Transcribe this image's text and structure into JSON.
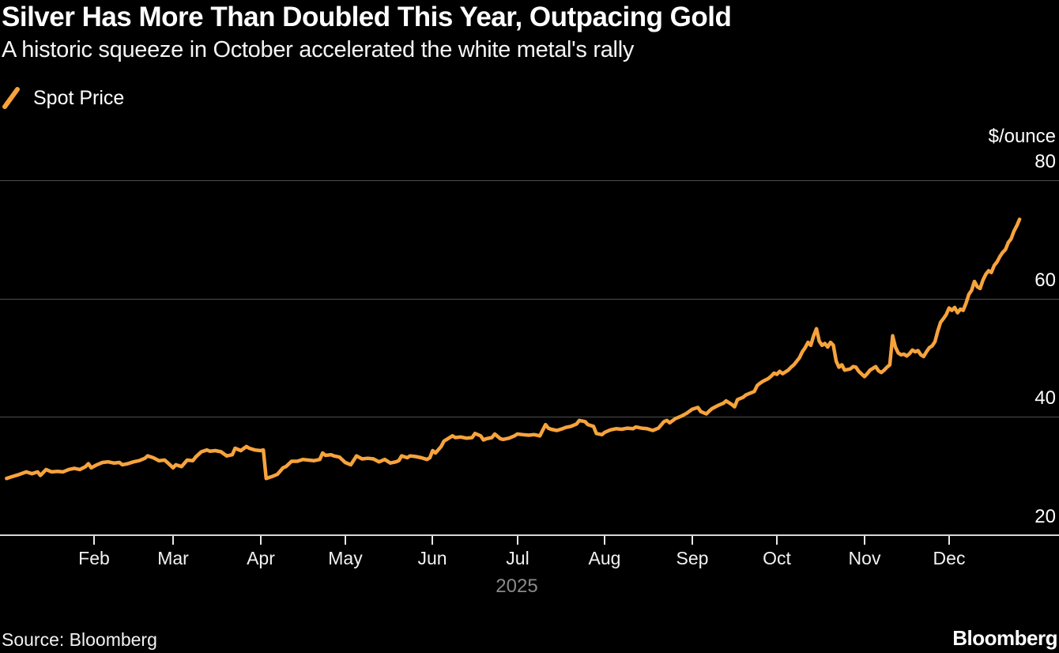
{
  "header": {
    "title": "Silver Has More Than Doubled This Year, Outpacing Gold",
    "subtitle": "A historic squeeze in October accelerated the white metal's rally"
  },
  "legend": {
    "label": "Spot Price"
  },
  "footer": {
    "source": "Source: Bloomberg",
    "brand": "Bloomberg"
  },
  "colors": {
    "background": "#000000",
    "text": "#ffffff",
    "line": "#f7a33c",
    "grid": "#4d4d4d",
    "axis": "#d6d6d6",
    "tick": "#e8e8e8",
    "muted": "#8a8a8a"
  },
  "chart_data": {
    "type": "line",
    "title": "Silver Has More Than Doubled This Year, Outpacing Gold",
    "subtitle": "A historic squeeze in October accelerated the white metal's rally",
    "unit_label": "$/ounce",
    "x_axis": {
      "year_label": "2025",
      "months": [
        "Feb",
        "Mar",
        "Apr",
        "May",
        "Jun",
        "Jul",
        "Aug",
        "Sep",
        "Oct",
        "Nov",
        "Dec"
      ],
      "range_days": [
        1,
        360
      ]
    },
    "y_axis": {
      "ticks": [
        80,
        60,
        40,
        20
      ],
      "ylim": [
        20,
        80
      ],
      "grid": true
    },
    "series": [
      {
        "name": "Spot Price",
        "color": "#f7a33c",
        "points_format": "[day_of_year_2025, usd_per_ounce]",
        "points": [
          [
            1,
            29.6
          ],
          [
            3,
            29.9
          ],
          [
            5,
            30.2
          ],
          [
            8,
            30.7
          ],
          [
            10,
            30.4
          ],
          [
            12,
            30.7
          ],
          [
            13,
            30.1
          ],
          [
            15,
            31.1
          ],
          [
            17,
            30.7
          ],
          [
            19,
            30.8
          ],
          [
            21,
            30.7
          ],
          [
            23,
            31.1
          ],
          [
            25,
            31.3
          ],
          [
            27,
            31.1
          ],
          [
            29,
            31.6
          ],
          [
            30,
            32.1
          ],
          [
            31,
            31.4
          ],
          [
            33,
            31.9
          ],
          [
            35,
            32.3
          ],
          [
            37,
            32.4
          ],
          [
            39,
            32.2
          ],
          [
            41,
            32.3
          ],
          [
            42,
            31.9
          ],
          [
            44,
            32.1
          ],
          [
            46,
            32.4
          ],
          [
            48,
            32.6
          ],
          [
            50,
            33.0
          ],
          [
            51,
            33.4
          ],
          [
            53,
            33.1
          ],
          [
            55,
            32.6
          ],
          [
            57,
            32.7
          ],
          [
            58,
            32.3
          ],
          [
            60,
            31.4
          ],
          [
            61,
            31.9
          ],
          [
            63,
            31.6
          ],
          [
            65,
            32.7
          ],
          [
            67,
            32.6
          ],
          [
            68,
            33.2
          ],
          [
            70,
            34.1
          ],
          [
            72,
            34.4
          ],
          [
            73,
            34.2
          ],
          [
            75,
            34.3
          ],
          [
            77,
            34.1
          ],
          [
            79,
            33.4
          ],
          [
            81,
            33.6
          ],
          [
            82,
            34.7
          ],
          [
            84,
            34.3
          ],
          [
            86,
            35.0
          ],
          [
            87,
            34.7
          ],
          [
            89,
            34.4
          ],
          [
            91,
            34.3
          ],
          [
            92,
            34.4
          ],
          [
            93,
            29.6
          ],
          [
            95,
            29.9
          ],
          [
            97,
            30.3
          ],
          [
            99,
            31.4
          ],
          [
            100,
            31.6
          ],
          [
            102,
            32.5
          ],
          [
            104,
            32.5
          ],
          [
            106,
            32.8
          ],
          [
            108,
            32.7
          ],
          [
            110,
            32.6
          ],
          [
            112,
            32.8
          ],
          [
            113,
            33.9
          ],
          [
            114,
            33.5
          ],
          [
            116,
            33.6
          ],
          [
            117,
            33.4
          ],
          [
            119,
            33.2
          ],
          [
            121,
            32.3
          ],
          [
            123,
            31.9
          ],
          [
            125,
            33.4
          ],
          [
            127,
            32.9
          ],
          [
            129,
            33.0
          ],
          [
            131,
            32.9
          ],
          [
            133,
            32.4
          ],
          [
            135,
            32.8
          ],
          [
            137,
            32.2
          ],
          [
            139,
            32.4
          ],
          [
            140,
            32.6
          ],
          [
            141,
            33.4
          ],
          [
            143,
            33.1
          ],
          [
            144,
            33.4
          ],
          [
            146,
            33.3
          ],
          [
            148,
            33.1
          ],
          [
            150,
            32.8
          ],
          [
            151,
            33.1
          ],
          [
            152,
            34.3
          ],
          [
            153,
            33.9
          ],
          [
            155,
            35.0
          ],
          [
            156,
            35.9
          ],
          [
            157,
            36.2
          ],
          [
            159,
            36.8
          ],
          [
            160,
            36.5
          ],
          [
            162,
            36.6
          ],
          [
            164,
            36.4
          ],
          [
            166,
            36.5
          ],
          [
            167,
            37.2
          ],
          [
            169,
            36.8
          ],
          [
            170,
            36.1
          ],
          [
            171,
            36.3
          ],
          [
            173,
            36.5
          ],
          [
            174,
            37.1
          ],
          [
            176,
            36.3
          ],
          [
            177,
            36.2
          ],
          [
            179,
            36.4
          ],
          [
            181,
            36.8
          ],
          [
            182,
            37.1
          ],
          [
            184,
            37.0
          ],
          [
            186,
            36.9
          ],
          [
            188,
            37.0
          ],
          [
            190,
            36.8
          ],
          [
            192,
            38.7
          ],
          [
            193,
            38.1
          ],
          [
            194,
            37.9
          ],
          [
            196,
            37.7
          ],
          [
            198,
            38.0
          ],
          [
            199,
            38.2
          ],
          [
            201,
            38.4
          ],
          [
            203,
            38.8
          ],
          [
            204,
            39.4
          ],
          [
            206,
            39.2
          ],
          [
            207,
            38.7
          ],
          [
            209,
            38.4
          ],
          [
            210,
            37.2
          ],
          [
            212,
            37.0
          ],
          [
            213,
            37.4
          ],
          [
            215,
            37.8
          ],
          [
            217,
            38.0
          ],
          [
            219,
            37.9
          ],
          [
            221,
            38.1
          ],
          [
            223,
            38.0
          ],
          [
            224,
            38.3
          ],
          [
            226,
            38.1
          ],
          [
            228,
            38.0
          ],
          [
            230,
            37.7
          ],
          [
            232,
            38.1
          ],
          [
            234,
            39.2
          ],
          [
            235,
            39.4
          ],
          [
            236,
            39.0
          ],
          [
            238,
            39.7
          ],
          [
            240,
            40.1
          ],
          [
            242,
            40.6
          ],
          [
            244,
            41.3
          ],
          [
            246,
            41.6
          ],
          [
            247,
            40.9
          ],
          [
            249,
            40.5
          ],
          [
            250,
            41.0
          ],
          [
            251,
            41.4
          ],
          [
            253,
            41.9
          ],
          [
            255,
            42.3
          ],
          [
            256,
            42.7
          ],
          [
            258,
            42.1
          ],
          [
            259,
            41.7
          ],
          [
            260,
            42.9
          ],
          [
            262,
            43.3
          ],
          [
            263,
            43.7
          ],
          [
            264,
            43.9
          ],
          [
            266,
            44.3
          ],
          [
            267,
            45.3
          ],
          [
            268,
            45.7
          ],
          [
            269,
            46.0
          ],
          [
            271,
            46.5
          ],
          [
            272,
            46.9
          ],
          [
            273,
            47.4
          ],
          [
            274,
            47.2
          ],
          [
            275,
            47.7
          ],
          [
            276,
            47.3
          ],
          [
            278,
            47.9
          ],
          [
            279,
            48.4
          ],
          [
            280,
            48.8
          ],
          [
            282,
            50.0
          ],
          [
            283,
            51.0
          ],
          [
            284,
            51.7
          ],
          [
            285,
            52.6
          ],
          [
            286,
            52.1
          ],
          [
            287,
            53.7
          ],
          [
            288,
            54.9
          ],
          [
            289,
            52.8
          ],
          [
            290,
            52.1
          ],
          [
            291,
            52.4
          ],
          [
            292,
            51.8
          ],
          [
            293,
            52.6
          ],
          [
            294,
            52.1
          ],
          [
            295,
            49.4
          ],
          [
            296,
            48.4
          ],
          [
            297,
            48.8
          ],
          [
            298,
            47.9
          ],
          [
            300,
            48.1
          ],
          [
            301,
            48.5
          ],
          [
            302,
            48.4
          ],
          [
            303,
            47.7
          ],
          [
            305,
            46.8
          ],
          [
            306,
            47.3
          ],
          [
            307,
            47.9
          ],
          [
            308,
            48.2
          ],
          [
            309,
            48.5
          ],
          [
            310,
            47.8
          ],
          [
            311,
            47.5
          ],
          [
            312,
            47.9
          ],
          [
            313,
            48.4
          ],
          [
            314,
            48.8
          ],
          [
            315,
            53.7
          ],
          [
            316,
            51.8
          ],
          [
            317,
            50.8
          ],
          [
            318,
            50.5
          ],
          [
            319,
            50.6
          ],
          [
            320,
            50.3
          ],
          [
            321,
            50.7
          ],
          [
            322,
            51.3
          ],
          [
            323,
            51.0
          ],
          [
            324,
            51.2
          ],
          [
            325,
            50.5
          ],
          [
            326,
            50.2
          ],
          [
            327,
            51.0
          ],
          [
            328,
            51.7
          ],
          [
            329,
            52.0
          ],
          [
            330,
            52.7
          ],
          [
            331,
            54.5
          ],
          [
            332,
            56.0
          ],
          [
            333,
            56.6
          ],
          [
            334,
            57.3
          ],
          [
            335,
            58.4
          ],
          [
            336,
            58.0
          ],
          [
            337,
            58.5
          ],
          [
            338,
            57.6
          ],
          [
            339,
            58.2
          ],
          [
            340,
            58.0
          ],
          [
            341,
            59.2
          ],
          [
            342,
            60.7
          ],
          [
            343,
            61.4
          ],
          [
            344,
            62.9
          ],
          [
            345,
            62.0
          ],
          [
            346,
            61.7
          ],
          [
            347,
            63.1
          ],
          [
            348,
            64.1
          ],
          [
            349,
            64.7
          ],
          [
            350,
            64.4
          ],
          [
            351,
            65.6
          ],
          [
            352,
            66.2
          ],
          [
            353,
            67.1
          ],
          [
            354,
            67.8
          ],
          [
            355,
            68.3
          ],
          [
            356,
            69.5
          ],
          [
            357,
            70.1
          ],
          [
            358,
            71.4
          ],
          [
            359,
            72.3
          ],
          [
            360,
            73.4
          ]
        ]
      }
    ]
  }
}
